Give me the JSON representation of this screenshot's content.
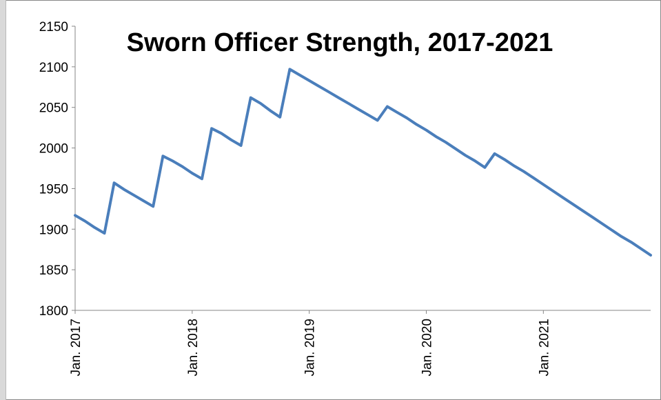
{
  "chart_data": {
    "type": "line",
    "title": "Sworn Officer Strength, 2017-2021",
    "xlabel": "",
    "ylabel": "",
    "ylim": [
      1800,
      2150
    ],
    "yticks": [
      2150,
      2100,
      2050,
      2000,
      1950,
      1900,
      1850,
      1800
    ],
    "xticks": [
      "Jan. 2017",
      "Jan. 2018",
      "Jan. 2019",
      "Jan. 2020",
      "Jan. 2021"
    ],
    "grid": false,
    "legend": "none",
    "line_color": "#4a7ebb",
    "series": [
      {
        "x": [
          "2017-01",
          "2017-02",
          "2017-03",
          "2017-04",
          "2017-05",
          "2017-06",
          "2017-07",
          "2017-08",
          "2017-09",
          "2017-10",
          "2017-11",
          "2017-12",
          "2018-01",
          "2018-02",
          "2018-03",
          "2018-04",
          "2018-05",
          "2018-06",
          "2018-07",
          "2018-08",
          "2018-09",
          "2018-10",
          "2018-11",
          "2018-12",
          "2019-01",
          "2019-02",
          "2019-03",
          "2019-04",
          "2019-05",
          "2019-06",
          "2019-07",
          "2019-08",
          "2019-09",
          "2019-10",
          "2019-11",
          "2019-12",
          "2020-01",
          "2020-02",
          "2020-03",
          "2020-04",
          "2020-05",
          "2020-06",
          "2020-07",
          "2020-08",
          "2020-09",
          "2020-10",
          "2020-11",
          "2020-12",
          "2021-01",
          "2021-02",
          "2021-03",
          "2021-04",
          "2021-05",
          "2021-06",
          "2021-07",
          "2021-08",
          "2021-09",
          "2021-10",
          "2021-11",
          "2021-12"
        ],
        "values": [
          1917,
          1910,
          1902,
          1895,
          1957,
          1949,
          1942,
          1935,
          1928,
          1990,
          1984,
          1977,
          1969,
          1962,
          2024,
          2018,
          2010,
          2003,
          2062,
          2055,
          2046,
          2038,
          2097,
          2090,
          2083,
          2076,
          2069,
          2062,
          2055,
          2048,
          2041,
          2034,
          2051,
          2044,
          2037,
          2029,
          2022,
          2014,
          2007,
          1999,
          1991,
          1984,
          1976,
          1993,
          1986,
          1978,
          1971,
          1963,
          1955,
          1947,
          1939,
          1931,
          1923,
          1915,
          1907,
          1899,
          1891,
          1884,
          1876,
          1868
        ]
      }
    ]
  }
}
